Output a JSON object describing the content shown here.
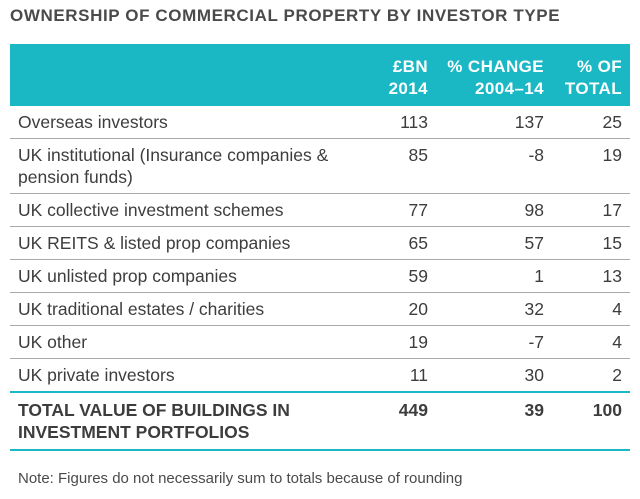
{
  "title": "OWNERSHIP OF COMMERCIAL PROPERTY BY INVESTOR TYPE",
  "chart_data": {
    "type": "table",
    "columns": [
      {
        "label": "",
        "label_line2": ""
      },
      {
        "label": "£BN",
        "label_line2": "2014"
      },
      {
        "label": "% CHANGE",
        "label_line2": "2004–14"
      },
      {
        "label": "% OF",
        "label_line2": "TOTAL"
      }
    ],
    "rows": [
      {
        "label": "Overseas investors",
        "bn_2014": "113",
        "pct_change": "137",
        "pct_total": "25"
      },
      {
        "label": "UK institutional (Insurance companies & pension funds)",
        "bn_2014": "85",
        "pct_change": "-8",
        "pct_total": "19"
      },
      {
        "label": "UK collective investment schemes",
        "bn_2014": "77",
        "pct_change": "98",
        "pct_total": "17"
      },
      {
        "label": "UK REITS & listed prop companies",
        "bn_2014": "65",
        "pct_change": "57",
        "pct_total": "15"
      },
      {
        "label": "UK unlisted prop companies",
        "bn_2014": "59",
        "pct_change": "1",
        "pct_total": "13"
      },
      {
        "label": "UK traditional estates / charities",
        "bn_2014": "20",
        "pct_change": "32",
        "pct_total": "4"
      },
      {
        "label": "UK other",
        "bn_2014": "19",
        "pct_change": "-7",
        "pct_total": "4"
      },
      {
        "label": "UK private investors",
        "bn_2014": "11",
        "pct_change": "30",
        "pct_total": "2"
      }
    ],
    "total": {
      "label": "TOTAL VALUE OF BUILDINGS IN INVESTMENT PORTFOLIOS",
      "bn_2014": "449",
      "pct_change": "39",
      "pct_total": "100"
    },
    "note": "Note: Figures do not necessarily sum to totals because of rounding"
  },
  "colors": {
    "header_bg": "#1ab7c4",
    "header_text": "#ffffff",
    "body_text": "#3d3d3d",
    "rule": "#a9a9a9"
  }
}
